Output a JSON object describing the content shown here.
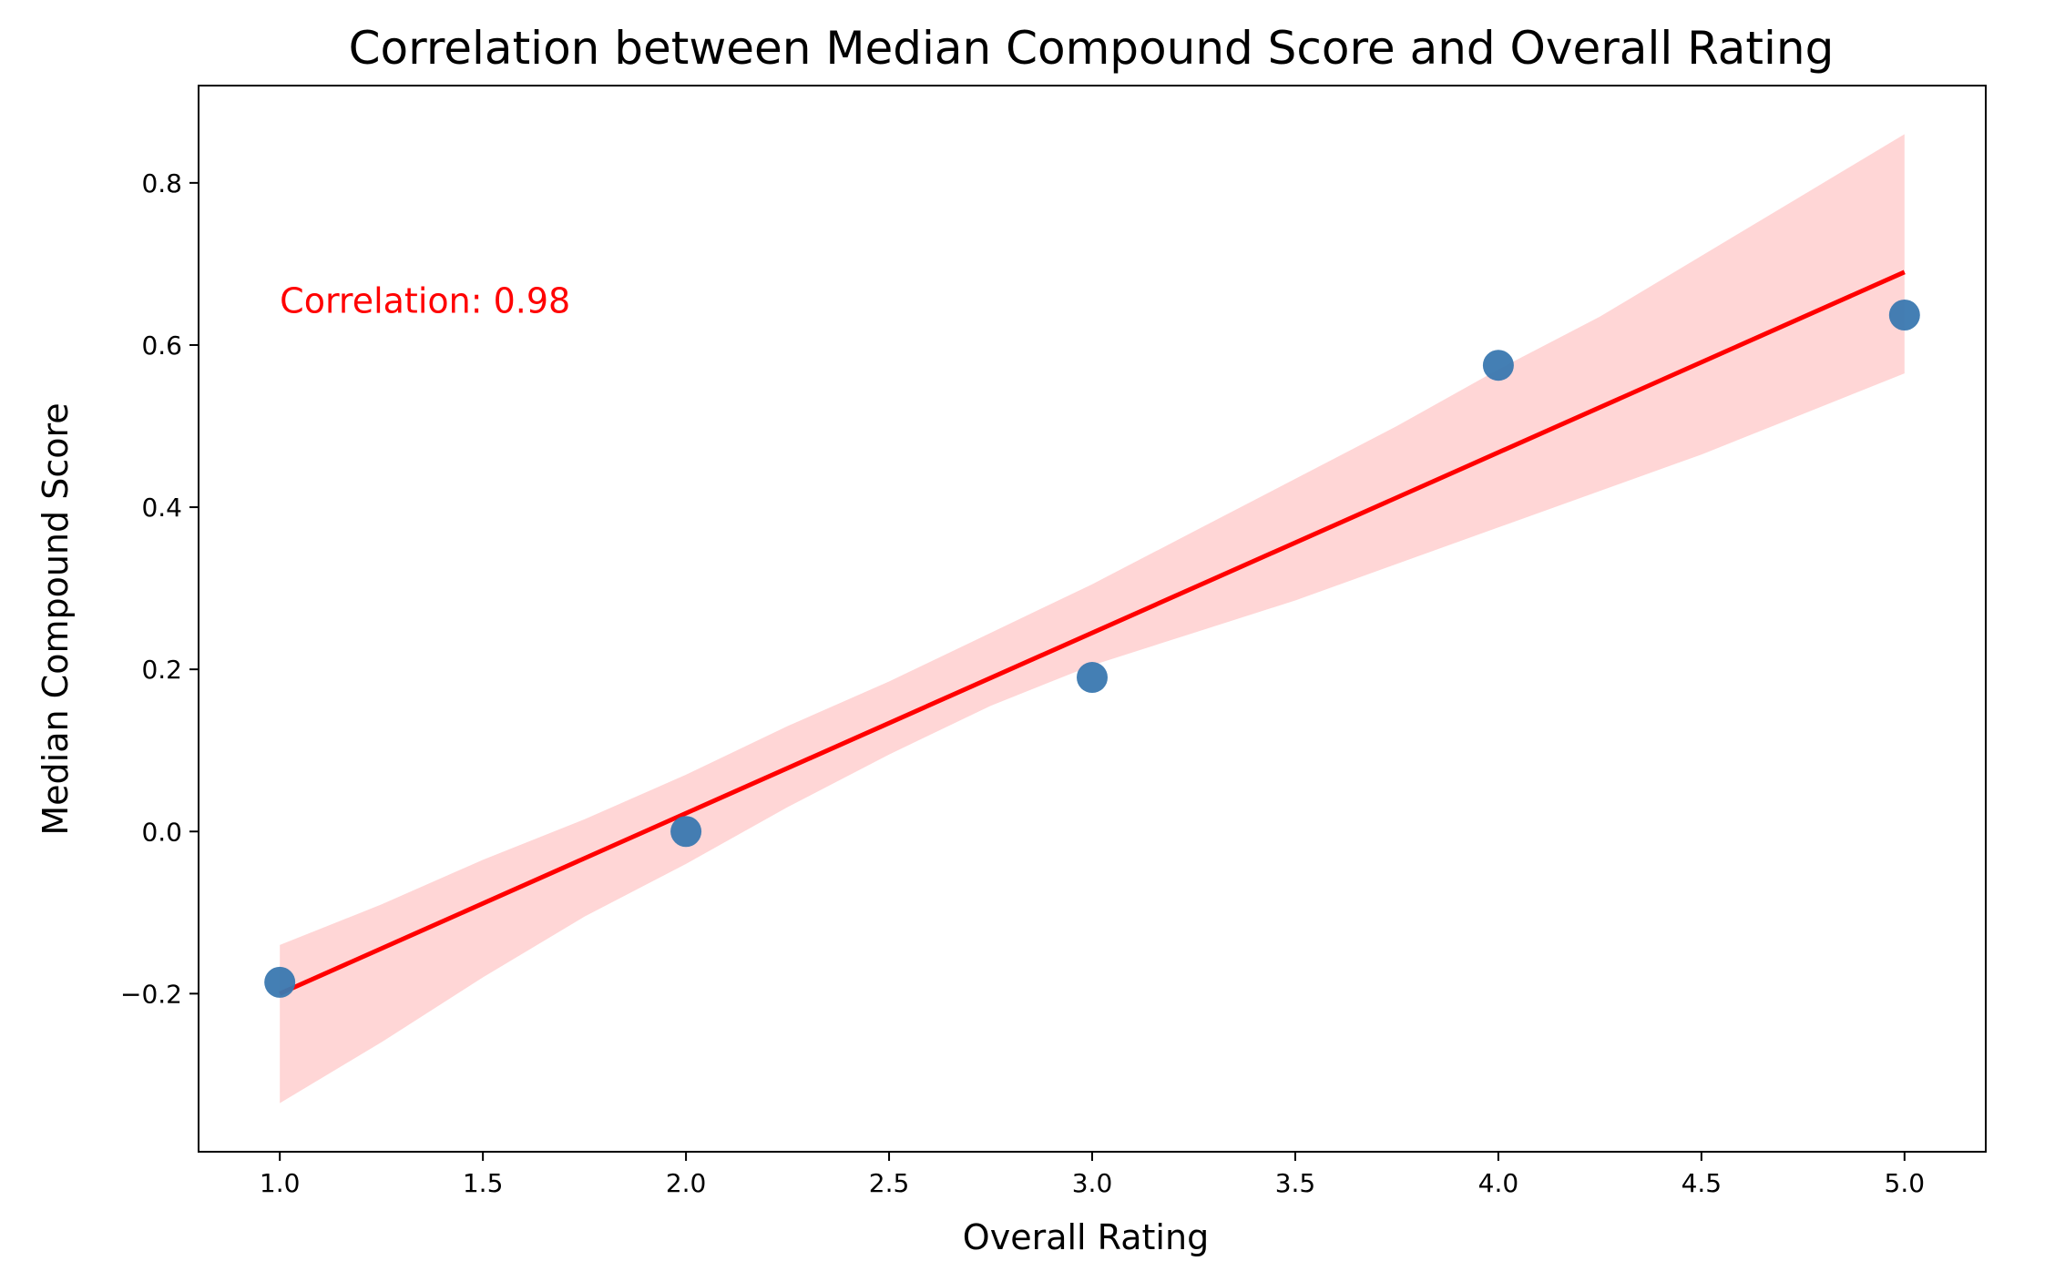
{
  "chart_data": {
    "type": "scatter",
    "title": "Correlation between Median Compound Score and Overall Rating",
    "xlabel": "Overall Rating",
    "ylabel": "Median Compound Score",
    "xlim": [
      0.8,
      5.2
    ],
    "ylim": [
      -0.395,
      0.92
    ],
    "x_ticks": [
      1.0,
      1.5,
      2.0,
      2.5,
      3.0,
      3.5,
      4.0,
      4.5,
      5.0
    ],
    "x_tick_labels": [
      "1.0",
      "1.5",
      "2.0",
      "2.5",
      "3.0",
      "3.5",
      "4.0",
      "4.5",
      "5.0"
    ],
    "y_ticks": [
      -0.2,
      0.0,
      0.2,
      0.4,
      0.6,
      0.8
    ],
    "y_tick_labels": [
      "−0.2",
      "0.0",
      "0.2",
      "0.4",
      "0.6",
      "0.8"
    ],
    "grid": false,
    "points": [
      {
        "x": 1.0,
        "y": -0.186
      },
      {
        "x": 2.0,
        "y": 0.0
      },
      {
        "x": 3.0,
        "y": 0.19
      },
      {
        "x": 4.0,
        "y": 0.575
      },
      {
        "x": 5.0,
        "y": 0.637
      }
    ],
    "regression_line": [
      {
        "x": 1.0,
        "y": -0.2
      },
      {
        "x": 5.0,
        "y": 0.69
      }
    ],
    "confidence_band": [
      {
        "x": 1.0,
        "lower": -0.335,
        "upper": -0.14
      },
      {
        "x": 1.25,
        "lower": -0.26,
        "upper": -0.09
      },
      {
        "x": 1.5,
        "lower": -0.18,
        "upper": -0.035
      },
      {
        "x": 1.75,
        "lower": -0.105,
        "upper": 0.015
      },
      {
        "x": 2.0,
        "lower": -0.04,
        "upper": 0.07
      },
      {
        "x": 2.25,
        "lower": 0.03,
        "upper": 0.13
      },
      {
        "x": 2.5,
        "lower": 0.095,
        "upper": 0.185
      },
      {
        "x": 2.75,
        "lower": 0.155,
        "upper": 0.245
      },
      {
        "x": 3.0,
        "lower": 0.205,
        "upper": 0.305
      },
      {
        "x": 3.25,
        "lower": 0.245,
        "upper": 0.37
      },
      {
        "x": 3.5,
        "lower": 0.285,
        "upper": 0.435
      },
      {
        "x": 3.75,
        "lower": 0.33,
        "upper": 0.5
      },
      {
        "x": 4.0,
        "lower": 0.375,
        "upper": 0.57
      },
      {
        "x": 4.25,
        "lower": 0.42,
        "upper": 0.635
      },
      {
        "x": 4.5,
        "lower": 0.465,
        "upper": 0.71
      },
      {
        "x": 4.75,
        "lower": 0.515,
        "upper": 0.785
      },
      {
        "x": 5.0,
        "lower": 0.565,
        "upper": 0.86
      }
    ],
    "annotation": {
      "text": "Correlation: 0.98",
      "x": 1.0,
      "y": 0.64
    },
    "colors": {
      "points": "#3a78b0",
      "line": "#ff0000",
      "band": "#ffd6d6",
      "annotation": "#ff0000"
    }
  }
}
